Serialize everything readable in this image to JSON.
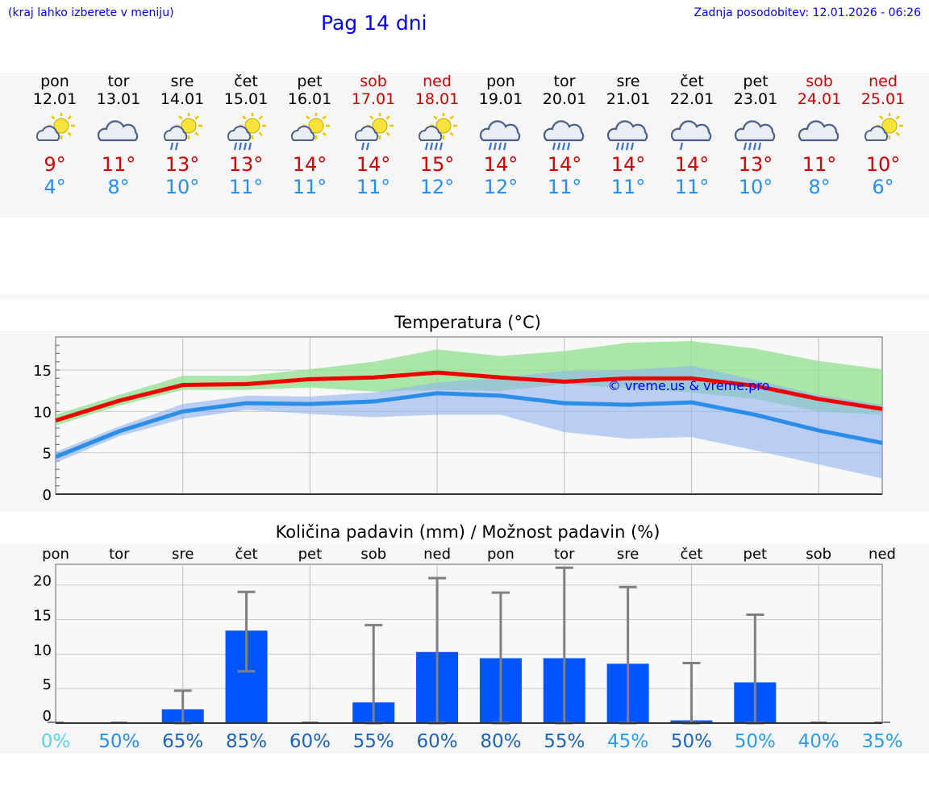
{
  "header": {
    "location_hint": "(kraj lahko izberete v meniju)",
    "title": "Pag 14 dni",
    "last_update": "Zadnja posodobitev: 12.01.2026 - 06:26"
  },
  "colors": {
    "max_temp": "#d00000",
    "min_temp": "#2a8de8",
    "bar": "#0055ff",
    "whisker": "#808080",
    "link": "#0000ee"
  },
  "forecast": [
    {
      "day": "pon",
      "date": "12.01",
      "weekend": false,
      "icon": "partly-cloudy-sun-icon",
      "max": "9°",
      "min": "4°"
    },
    {
      "day": "tor",
      "date": "13.01",
      "weekend": false,
      "icon": "cloudy-icon",
      "max": "11°",
      "min": "8°"
    },
    {
      "day": "sre",
      "date": "14.01",
      "weekend": false,
      "icon": "sun-cloud-light-rain-icon",
      "max": "13°",
      "min": "10°"
    },
    {
      "day": "čet",
      "date": "15.01",
      "weekend": false,
      "icon": "sun-cloud-rain-icon",
      "max": "13°",
      "min": "11°"
    },
    {
      "day": "pet",
      "date": "16.01",
      "weekend": false,
      "icon": "partly-cloudy-sun-icon",
      "max": "14°",
      "min": "11°"
    },
    {
      "day": "sob",
      "date": "17.01",
      "weekend": true,
      "icon": "sun-cloud-light-rain-icon",
      "max": "14°",
      "min": "11°"
    },
    {
      "day": "ned",
      "date": "18.01",
      "weekend": true,
      "icon": "sun-cloud-rain-icon",
      "max": "15°",
      "min": "12°"
    },
    {
      "day": "pon",
      "date": "19.01",
      "weekend": false,
      "icon": "cloud-rain-icon",
      "max": "14°",
      "min": "12°"
    },
    {
      "day": "tor",
      "date": "20.01",
      "weekend": false,
      "icon": "cloud-rain-icon",
      "max": "14°",
      "min": "11°"
    },
    {
      "day": "sre",
      "date": "21.01",
      "weekend": false,
      "icon": "cloud-rain-icon",
      "max": "14°",
      "min": "11°"
    },
    {
      "day": "čet",
      "date": "22.01",
      "weekend": false,
      "icon": "cloud-light-rain-icon",
      "max": "14°",
      "min": "11°"
    },
    {
      "day": "pet",
      "date": "23.01",
      "weekend": false,
      "icon": "cloud-rain-icon",
      "max": "13°",
      "min": "10°"
    },
    {
      "day": "sob",
      "date": "24.01",
      "weekend": true,
      "icon": "cloudy-icon",
      "max": "11°",
      "min": "8°"
    },
    {
      "day": "ned",
      "date": "25.01",
      "weekend": true,
      "icon": "partly-cloudy-sun-icon",
      "max": "10°",
      "min": "6°"
    }
  ],
  "chart_data": [
    {
      "type": "line",
      "title": "Temperatura (°C)",
      "x": [
        0,
        1,
        2,
        3,
        4,
        5,
        6,
        7,
        8,
        9,
        10,
        11,
        12,
        13
      ],
      "ylim": [
        0,
        19
      ],
      "yticks": [
        0,
        5,
        10,
        15
      ],
      "grid": true,
      "watermark": "© vreme.us & vreme.pro",
      "series": [
        {
          "name": "max",
          "color": "#ee0000",
          "values": [
            8.9,
            11.3,
            13.2,
            13.3,
            13.9,
            14.1,
            14.7,
            14.1,
            13.6,
            14.0,
            14.0,
            13.1,
            11.5,
            10.3
          ]
        },
        {
          "name": "min",
          "color": "#2a8de8",
          "values": [
            4.5,
            7.6,
            10.0,
            11.0,
            10.9,
            11.2,
            12.2,
            11.9,
            11.0,
            10.8,
            11.1,
            9.6,
            7.7,
            6.2
          ]
        }
      ],
      "bands": [
        {
          "name": "max-range",
          "color": "#8fe08c",
          "low": [
            8.3,
            10.7,
            12.6,
            12.6,
            12.9,
            12.4,
            12.6,
            12.5,
            13.3,
            12.8,
            12.3,
            11.5,
            10.0,
            9.6
          ],
          "high": [
            9.6,
            12.0,
            14.3,
            14.3,
            15.1,
            16.0,
            17.5,
            16.7,
            17.3,
            18.3,
            18.5,
            17.6,
            16.1,
            15.1
          ]
        },
        {
          "name": "min-range",
          "color": "#8fb3ee",
          "low": [
            3.8,
            7.0,
            9.1,
            10.2,
            9.7,
            9.3,
            9.6,
            9.6,
            7.5,
            6.7,
            6.9,
            5.3,
            3.6,
            1.9
          ],
          "high": [
            5.1,
            8.2,
            10.9,
            11.9,
            11.8,
            12.3,
            13.5,
            14.1,
            14.9,
            15.0,
            15.5,
            13.8,
            12.0,
            10.8
          ]
        }
      ]
    },
    {
      "type": "bar",
      "title": "Količina padavin (mm) / Možnost padavin (%)",
      "categories": [
        "pon",
        "tor",
        "sre",
        "čet",
        "pet",
        "sob",
        "ned",
        "pon",
        "tor",
        "sre",
        "čet",
        "pet",
        "sob",
        "ned"
      ],
      "values": [
        0,
        0,
        2.0,
        13.4,
        0,
        3.0,
        10.3,
        9.4,
        9.4,
        8.6,
        0.4,
        5.9,
        0,
        0
      ],
      "error_low": [
        0,
        0,
        0,
        7.5,
        0,
        0,
        0,
        0,
        0,
        0,
        0,
        0,
        0,
        0
      ],
      "error_high": [
        0,
        0,
        4.7,
        19.0,
        0,
        14.2,
        21.0,
        18.9,
        22.5,
        19.7,
        8.7,
        15.7,
        0,
        0
      ],
      "probability": [
        "0%",
        "50%",
        "65%",
        "85%",
        "60%",
        "55%",
        "60%",
        "80%",
        "55%",
        "45%",
        "50%",
        "50%",
        "40%",
        "35%"
      ],
      "probability_colors": [
        "#5bd0ee",
        "#2a8de8",
        "#1f63b5",
        "#1f63b5",
        "#1f63b5",
        "#1f63b5",
        "#1f63b5",
        "#1f63b5",
        "#1f63b5",
        "#2a9de8",
        "#1f63b5",
        "#2a9de8",
        "#2a9de8",
        "#2a9de8"
      ],
      "ylim": [
        0,
        23
      ],
      "yticks": [
        0,
        5,
        10,
        15,
        20
      ],
      "ylabel": "mm",
      "grid": true
    }
  ]
}
